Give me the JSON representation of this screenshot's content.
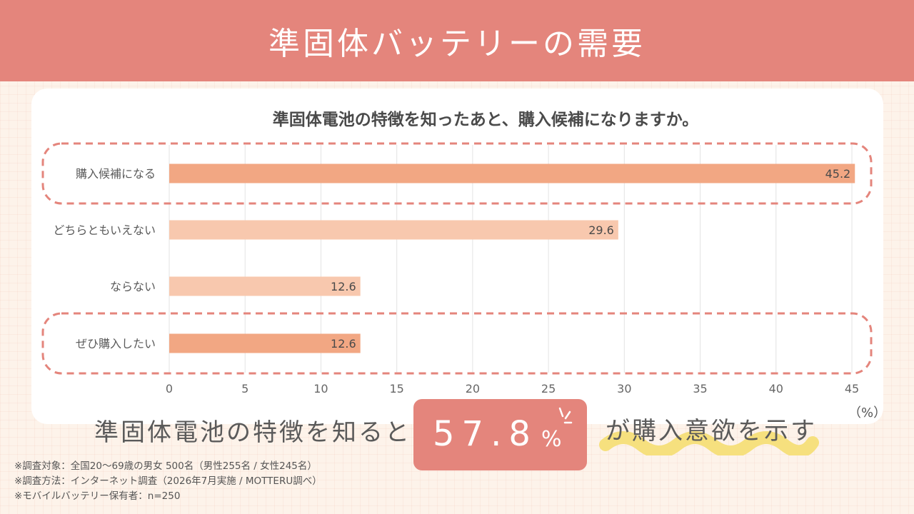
{
  "header": {
    "title": "準固体バッテリーの需要"
  },
  "chart_data": {
    "type": "bar",
    "orientation": "horizontal",
    "title": "準固体電池の特徴を知ったあと、購入候補になりますか。",
    "categories": [
      "購入候補になる",
      "どちらともいえない",
      "ならない",
      "ぜひ購入したい"
    ],
    "values": [
      45.2,
      29.6,
      12.6,
      12.6
    ],
    "value_labels": [
      "45.2",
      "29.6",
      "12.6",
      "12.6"
    ],
    "highlighted": [
      true,
      false,
      false,
      true
    ],
    "xlim": [
      0,
      45
    ],
    "xticks": [
      "0",
      "5",
      "10",
      "15",
      "20",
      "25",
      "30",
      "35",
      "40",
      "45"
    ],
    "unit_label": "（%）",
    "grid": true,
    "colors": {
      "highlight_bar": "#f2a783",
      "normal_bar": "#f8c8ae",
      "dashed_outline": "#e4857c",
      "grid": "#e3e3e3"
    }
  },
  "summary": {
    "prefix": "準固体電池の特徴を知ると",
    "value": "57.8",
    "percent": "%",
    "suffix": "が購入意欲を示す"
  },
  "notes": [
    "※調査対象：全国20〜69歳の男女 500名（男性255名 / 女性245名）",
    "※調査方法：インターネット調査（2026年7月実施 / MOTTERU調べ）",
    "※モバイルバッテリー保有者：n=250"
  ],
  "colors": {
    "accent": "#e4857c",
    "background": "#fdf3ea",
    "wave": "#f6e07e"
  }
}
